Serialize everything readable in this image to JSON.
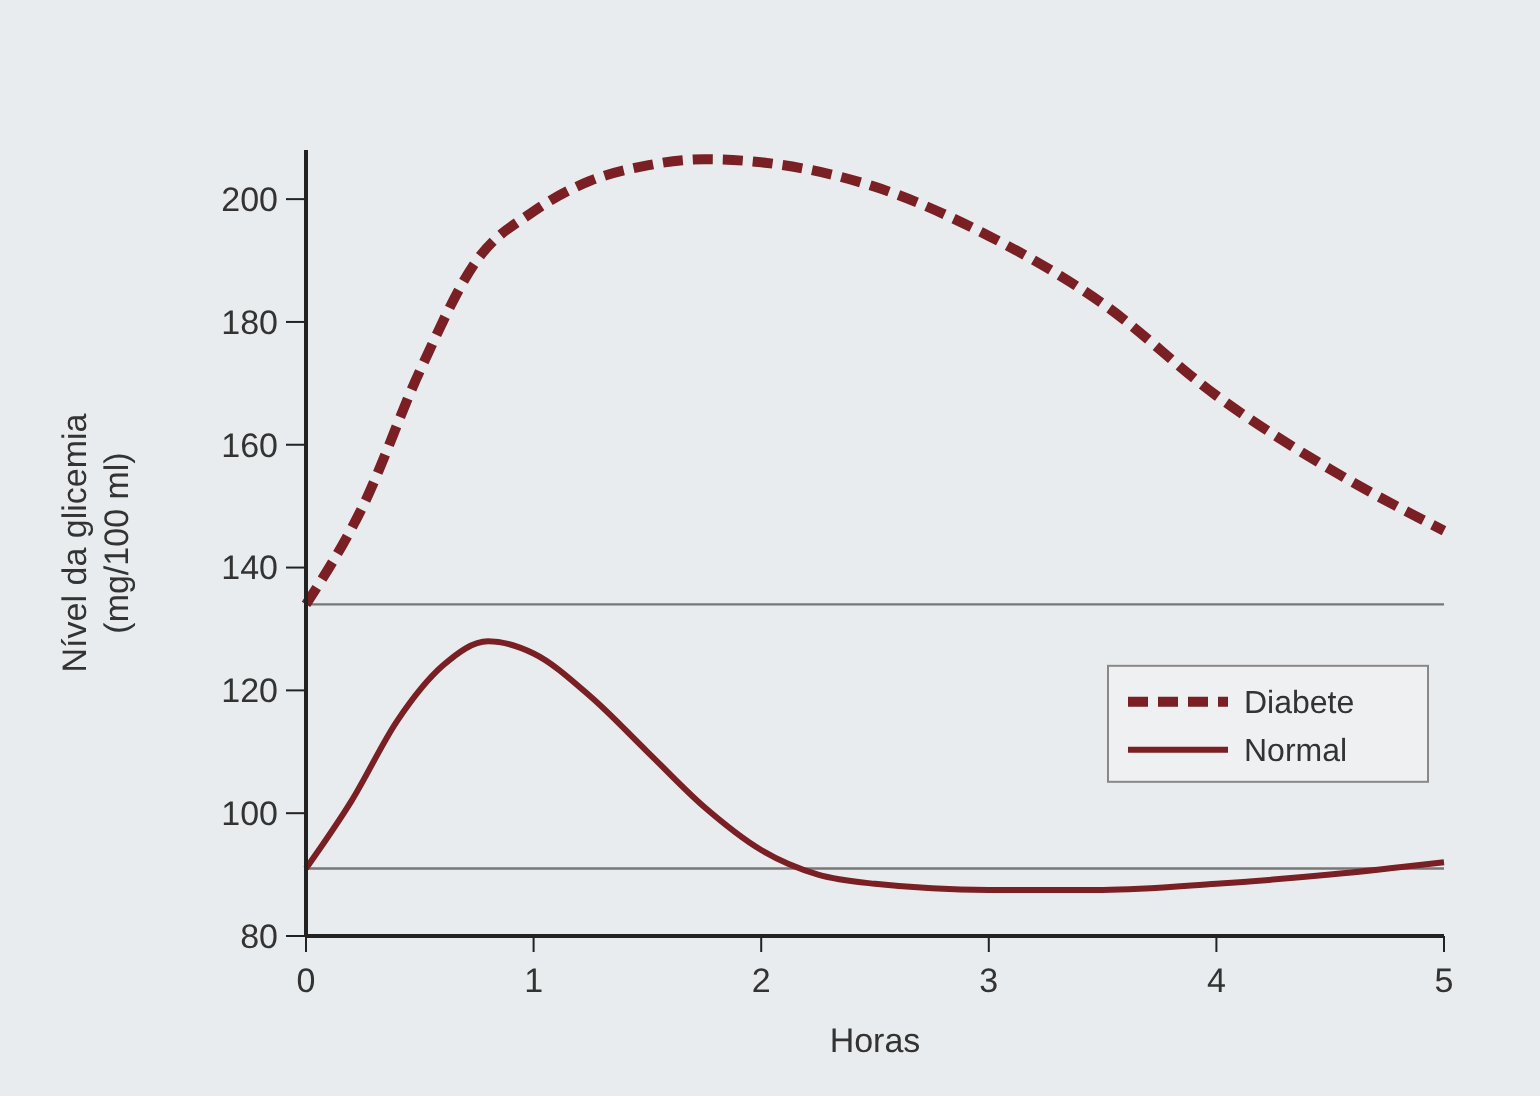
{
  "chart_data": {
    "type": "line",
    "xlabel": "Horas",
    "ylabel": "Nível da glicemia\n(mg/100 ml)",
    "xlim": [
      0,
      5
    ],
    "ylim": [
      80,
      208
    ],
    "xticks": [
      0,
      1,
      2,
      3,
      4,
      5
    ],
    "yticks": [
      80,
      100,
      120,
      140,
      160,
      180,
      200
    ],
    "grid": false,
    "legend": "right",
    "series": [
      {
        "name": "Diabete",
        "color": "#7a1f24",
        "line_style": "dashed",
        "x": [
          0,
          0.25,
          0.5,
          0.75,
          1,
          1.25,
          1.5,
          1.75,
          2,
          2.5,
          3,
          3.5,
          4,
          4.5,
          5
        ],
        "values": [
          134,
          150,
          172,
          190,
          198,
          203,
          205.5,
          206.5,
          206,
          202,
          194,
          183,
          168,
          156,
          146
        ]
      },
      {
        "name": "Normal",
        "color": "#7a1f24",
        "line_style": "solid",
        "x": [
          0,
          0.2,
          0.4,
          0.6,
          0.8,
          1,
          1.25,
          1.5,
          1.75,
          2,
          2.25,
          2.5,
          3,
          3.5,
          4,
          4.5,
          5
        ],
        "values": [
          91,
          102,
          115,
          124,
          128,
          126,
          119,
          110,
          101,
          94,
          90,
          88.5,
          87.5,
          87.5,
          88.5,
          90,
          92
        ]
      }
    ],
    "ref_lines": [
      {
        "axis": "y",
        "value": 134,
        "color": "#777777"
      },
      {
        "axis": "y",
        "value": 91,
        "color": "#777777"
      }
    ]
  }
}
